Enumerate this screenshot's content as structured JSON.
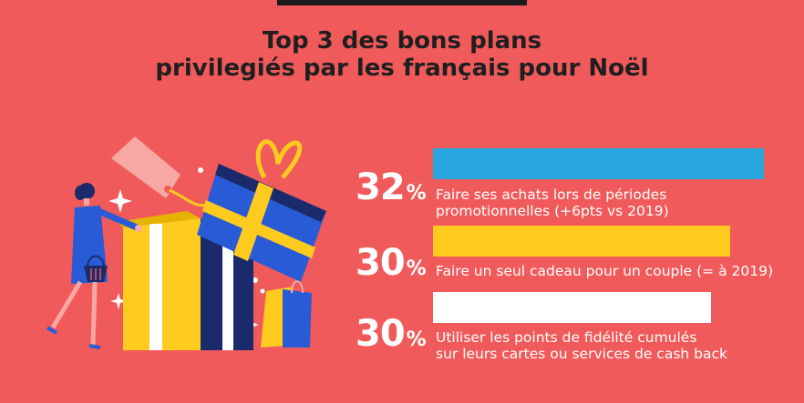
{
  "header": {
    "title_line1": "Top 3 des bons plans",
    "title_line2": "privilegiés par les français pour Noël"
  },
  "chart_data": {
    "type": "bar",
    "orientation": "horizontal",
    "title": "Top 3 des bons plans privilegiés par les français pour Noël",
    "categories": [
      "Faire ses achats lors de périodes promotionnelles (+6pts vs 2019)",
      "Faire un seul cadeau pour un couple (= à 2019)",
      "Utiliser les points de fidélité cumulés sur leurs cartes ou services de cash back"
    ],
    "values": [
      32,
      30,
      30
    ],
    "unit": "%",
    "bar_colors": [
      "#29A8E0",
      "#FFCB1F",
      "#FFFFFF"
    ]
  },
  "items": [
    {
      "value": "32",
      "unit": "%",
      "line1": "Faire ses achats lors de périodes",
      "line2": "promotionnelles (+6pts vs 2019)"
    },
    {
      "value": "30",
      "unit": "%",
      "line1": "Faire un seul cadeau pour un couple (= à 2019)",
      "line2": ""
    },
    {
      "value": "30",
      "unit": "%",
      "line1": "Utiliser les points de fidélité cumulés",
      "line2": "sur leurs cartes ou services de cash back"
    }
  ],
  "colors": {
    "background": "#F15A5A",
    "gift_blue": "#2A5BD7",
    "gift_yellow": "#FFCB1F",
    "tag_pink": "#F7A8A4",
    "navy": "#1B2A6B"
  },
  "illustration": {
    "icons": [
      "woman-shopper",
      "shopping-basket-icon",
      "gift-box-icon",
      "price-tag-icon",
      "shopping-bag-icon",
      "sparkle-icon"
    ]
  }
}
